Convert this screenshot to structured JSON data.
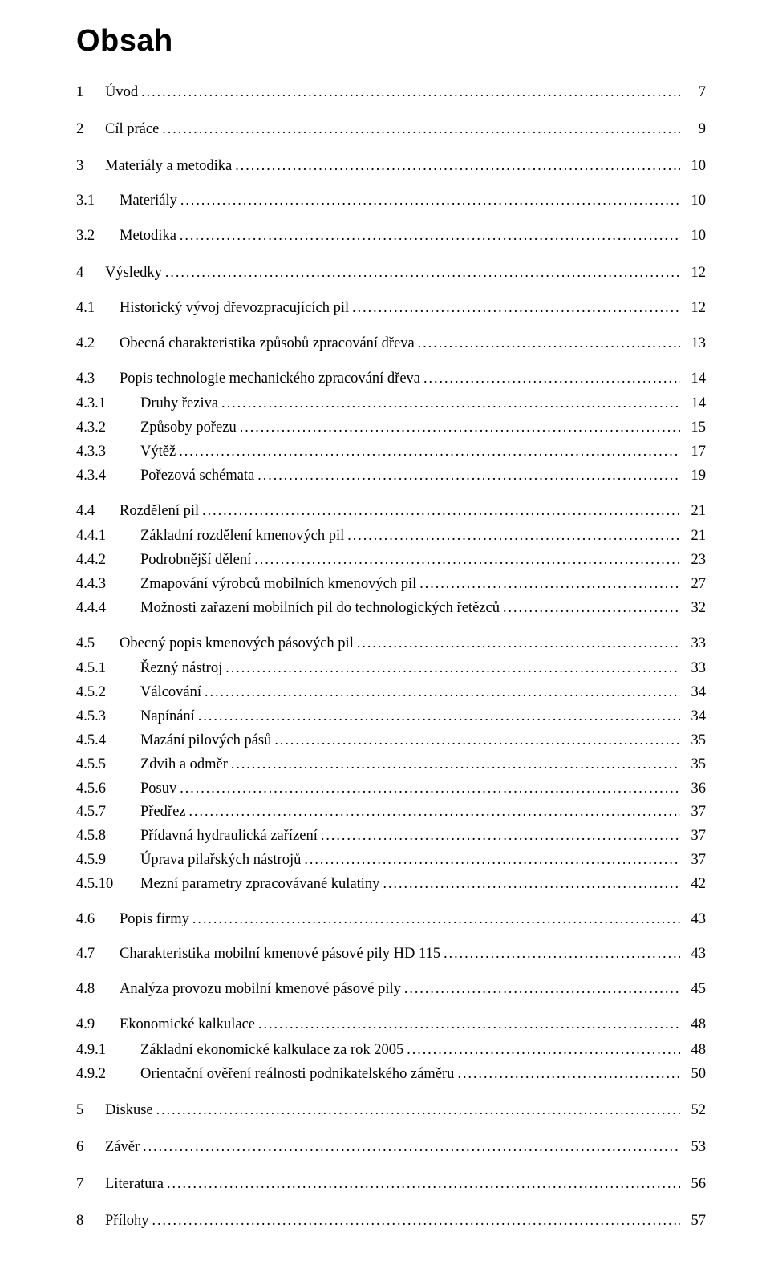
{
  "doc": {
    "heading": "Obsah",
    "heading_fontfamily": "Arial",
    "heading_fontsize_pt": 28,
    "heading_fontweight": "900",
    "body_fontfamily": "Times New Roman",
    "body_fontsize_pt": 14,
    "text_color": "#000000",
    "background_color": "#ffffff",
    "leader_char": "."
  },
  "toc": [
    {
      "level": 1,
      "num": "1",
      "title": "Úvod",
      "page": "7"
    },
    {
      "level": 1,
      "num": "2",
      "title": "Cíl práce",
      "page": "9"
    },
    {
      "level": 1,
      "num": "3",
      "title": "Materiály a metodika",
      "page": "10"
    },
    {
      "level": 2,
      "num": "3.1",
      "title": "Materiály",
      "page": "10"
    },
    {
      "level": 2,
      "num": "3.2",
      "title": "Metodika",
      "page": "10"
    },
    {
      "level": 1,
      "num": "4",
      "title": "Výsledky",
      "page": "12"
    },
    {
      "level": 2,
      "num": "4.1",
      "title": "Historický vývoj dřevozpracujících pil",
      "page": "12"
    },
    {
      "level": 2,
      "num": "4.2",
      "title": "Obecná charakteristika způsobů zpracování dřeva",
      "page": "13"
    },
    {
      "level": 2,
      "num": "4.3",
      "title": "Popis technologie mechanického zpracování dřeva",
      "page": "14"
    },
    {
      "level": 3,
      "num": "4.3.1",
      "title": "Druhy řeziva",
      "page": "14"
    },
    {
      "level": 3,
      "num": "4.3.2",
      "title": "Způsoby pořezu",
      "page": "15"
    },
    {
      "level": 3,
      "num": "4.3.3",
      "title": "Výtěž",
      "page": "17"
    },
    {
      "level": 3,
      "num": "4.3.4",
      "title": "Pořezová schémata",
      "page": "19"
    },
    {
      "level": 2,
      "num": "4.4",
      "title": "Rozdělení pil",
      "page": "21"
    },
    {
      "level": 3,
      "num": "4.4.1",
      "title": "Základní rozdělení  kmenových pil",
      "page": "21"
    },
    {
      "level": 3,
      "num": "4.4.2",
      "title": "Podrobnější dělení",
      "page": "23"
    },
    {
      "level": 3,
      "num": "4.4.3",
      "title": "Zmapování výrobců mobilních kmenových pil",
      "page": "27"
    },
    {
      "level": 3,
      "num": "4.4.4",
      "title": "Možnosti zařazení mobilních pil do technologických řetězců",
      "page": "32"
    },
    {
      "level": 2,
      "num": "4.5",
      "title": "Obecný popis kmenových pásových pil",
      "page": "33"
    },
    {
      "level": 3,
      "num": "4.5.1",
      "title": "Řezný nástroj",
      "page": "33"
    },
    {
      "level": 3,
      "num": "4.5.2",
      "title": "Válcování",
      "page": "34"
    },
    {
      "level": 3,
      "num": "4.5.3",
      "title": "Napínání",
      "page": "34"
    },
    {
      "level": 3,
      "num": "4.5.4",
      "title": "Mazání pilových pásů",
      "page": "35"
    },
    {
      "level": 3,
      "num": "4.5.5",
      "title": "Zdvih a odměr",
      "page": "35"
    },
    {
      "level": 3,
      "num": "4.5.6",
      "title": "Posuv",
      "page": "36"
    },
    {
      "level": 3,
      "num": "4.5.7",
      "title": "Předřez",
      "page": "37"
    },
    {
      "level": 3,
      "num": "4.5.8",
      "title": "Přídavná hydraulická zařízení",
      "page": "37"
    },
    {
      "level": 3,
      "num": "4.5.9",
      "title": "Úprava pilařských nástrojů",
      "page": "37"
    },
    {
      "level": 3,
      "num": "4.5.10",
      "title": "Mezní parametry zpracovávané kulatiny",
      "page": "42"
    },
    {
      "level": 2,
      "num": "4.6",
      "title": "Popis firmy",
      "page": "43"
    },
    {
      "level": 2,
      "num": "4.7",
      "title": "Charakteristika mobilní kmenové pásové pily HD 115",
      "page": "43"
    },
    {
      "level": 2,
      "num": "4.8",
      "title": "Analýza provozu mobilní kmenové pásové pily",
      "page": "45"
    },
    {
      "level": 2,
      "num": "4.9",
      "title": "Ekonomické kalkulace",
      "page": "48"
    },
    {
      "level": 3,
      "num": "4.9.1",
      "title": "Základní ekonomické kalkulace za rok 2005",
      "page": "48"
    },
    {
      "level": 3,
      "num": "4.9.2",
      "title": "Orientační ověření reálnosti podnikatelského záměru",
      "page": "50"
    },
    {
      "level": 1,
      "num": "5",
      "title": "Diskuse",
      "page": "52"
    },
    {
      "level": 1,
      "num": "6",
      "title": "Závěr",
      "page": "53"
    },
    {
      "level": 1,
      "num": "7",
      "title": "Literatura",
      "page": "56"
    },
    {
      "level": 1,
      "num": "8",
      "title": "Přílohy",
      "page": "57"
    }
  ]
}
